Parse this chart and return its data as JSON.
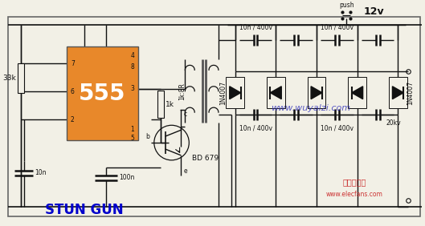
{
  "bg_color": "#f2f0e6",
  "border_color": "#666666",
  "title_text": "STUN GUN",
  "title_color": "#0000cc",
  "title_fontsize": 12,
  "chip_label": "555",
  "chip_color": "#e8882a",
  "chip_text_color": "#ffffff",
  "wire_color": "#111111",
  "component_color": "#111111",
  "label_fontsize": 6.5,
  "small_fontsize": 5.5,
  "resistor_33k": "33k",
  "resistor_1k": "1k",
  "cap_10n_bot": "10n",
  "cap_100n": "100n",
  "transformer_label": "1k:8R",
  "transistor_label": "BD 679",
  "diode_label": "1N4007",
  "cap_top_labels": [
    "10n / 400v",
    "10n / 400v"
  ],
  "cap_bot_labels": [
    "10n / 400v",
    "10n / 400v"
  ],
  "output_label": "20kv",
  "voltage_label": "12v",
  "push_label": "push",
  "watermark_text": "www.wuyalzi.com",
  "watermark_color": "#3333bb",
  "logo_text": "电子发烧友",
  "logo_sub": "www.elecfans.com",
  "logo_color": "#cc3333"
}
